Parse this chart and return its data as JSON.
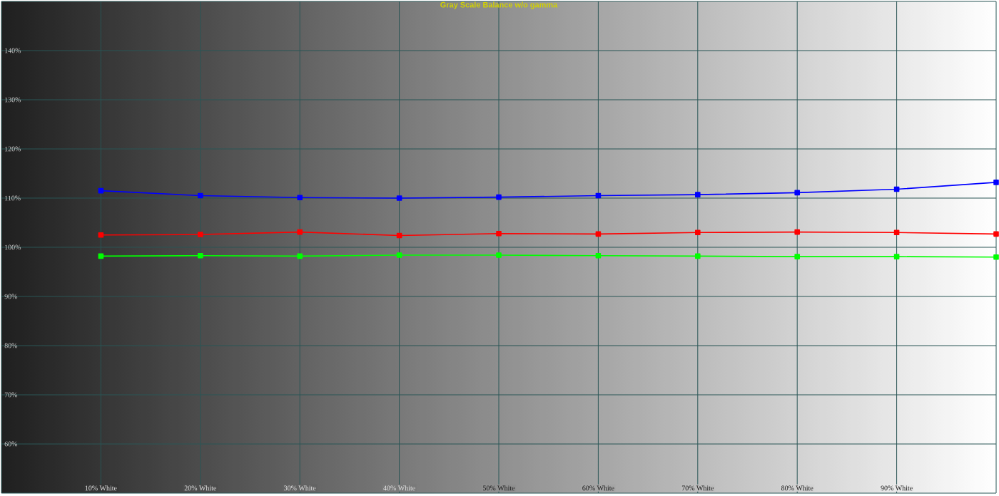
{
  "chart_data": {
    "type": "line",
    "title": "Gray Scale Balance w/o gamma",
    "x": [
      10,
      20,
      30,
      40,
      50,
      60,
      70,
      80,
      90,
      100
    ],
    "xlim": [
      0,
      100
    ],
    "xticks": [
      {
        "value": 10,
        "label": "10% White"
      },
      {
        "value": 20,
        "label": "20% White"
      },
      {
        "value": 30,
        "label": "30% White"
      },
      {
        "value": 40,
        "label": "40% White"
      },
      {
        "value": 50,
        "label": "50% White"
      },
      {
        "value": 60,
        "label": "60% White"
      },
      {
        "value": 70,
        "label": "70% White"
      },
      {
        "value": 80,
        "label": "80% White"
      },
      {
        "value": 90,
        "label": "90% White"
      }
    ],
    "ylim": [
      50,
      150
    ],
    "yticks": [
      {
        "value": 60,
        "label": "60%"
      },
      {
        "value": 70,
        "label": "70%"
      },
      {
        "value": 80,
        "label": "80%"
      },
      {
        "value": 90,
        "label": "90%"
      },
      {
        "value": 100,
        "label": "100%"
      },
      {
        "value": 110,
        "label": "110%"
      },
      {
        "value": 120,
        "label": "120%"
      },
      {
        "value": 130,
        "label": "130%"
      },
      {
        "value": 140,
        "label": "140%"
      }
    ],
    "series": [
      {
        "color": "#0000ff",
        "values": [
          111.5,
          110.5,
          110.1,
          110.0,
          110.2,
          110.5,
          110.7,
          111.1,
          111.8,
          113.2
        ]
      },
      {
        "color": "#ff0000",
        "values": [
          102.5,
          102.6,
          103.1,
          102.4,
          102.8,
          102.7,
          103.0,
          103.1,
          103.0,
          102.7
        ]
      },
      {
        "color": "#00ff00",
        "values": [
          98.2,
          98.3,
          98.2,
          98.4,
          98.4,
          98.3,
          98.2,
          98.1,
          98.1,
          98.0
        ]
      }
    ],
    "grid": true,
    "marker": "square",
    "line_style": "solid"
  }
}
